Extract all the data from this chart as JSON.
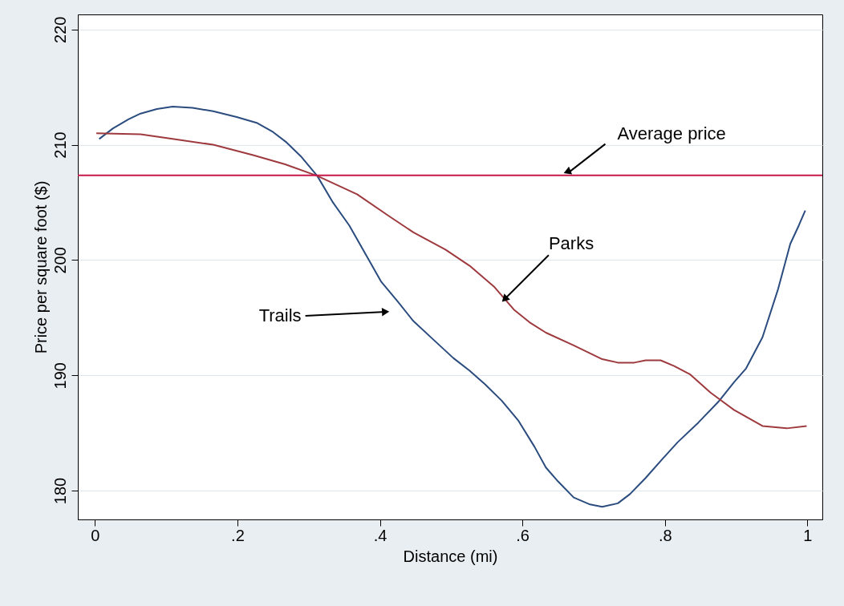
{
  "chart_data": {
    "type": "line",
    "xlabel": "Distance (mi)",
    "ylabel": "Price per square foot ($)",
    "xlim": [
      -0.024,
      1.021
    ],
    "ylim": [
      177.5,
      221.3
    ],
    "xticks": [
      0,
      {
        "value": 0.2,
        "label": ".2"
      },
      {
        "value": 0.4,
        "label": ".4"
      },
      {
        "value": 0.6,
        "label": ".6"
      },
      {
        "value": 0.8,
        "label": ".8"
      },
      1
    ],
    "yticks": [
      180,
      190,
      200,
      210,
      220
    ],
    "grid": "y",
    "legend": false,
    "marker": "none",
    "line_style": "solid",
    "series": [
      {
        "color": "#2b4c7e",
        "x": [
          0.006,
          0.025,
          0.047,
          0.064,
          0.087,
          0.109,
          0.137,
          0.166,
          0.199,
          0.227,
          0.25,
          0.269,
          0.289,
          0.312,
          0.334,
          0.357,
          0.38,
          0.402,
          0.425,
          0.447,
          0.475,
          0.503,
          0.526,
          0.548,
          0.571,
          0.594,
          0.617,
          0.633,
          0.65,
          0.672,
          0.695,
          0.712,
          0.734,
          0.751,
          0.773,
          0.796,
          0.818,
          0.847,
          0.875,
          0.897,
          0.914,
          0.937,
          0.959,
          0.976,
          0.988,
          0.997
        ],
        "values": [
          210.5,
          211.4,
          212.2,
          212.7,
          213.1,
          213.3,
          213.2,
          212.9,
          212.4,
          211.9,
          211.1,
          210.2,
          209.0,
          207.3,
          205.0,
          203.0,
          200.5,
          198.1,
          196.4,
          194.7,
          193.1,
          191.5,
          190.4,
          189.2,
          187.8,
          186.1,
          183.8,
          182.0,
          180.8,
          179.4,
          178.8,
          178.6,
          178.9,
          179.7,
          181.1,
          182.7,
          184.2,
          185.9,
          187.7,
          189.4,
          190.6,
          193.3,
          197.5,
          201.4,
          203.0,
          204.3
        ]
      },
      {
        "color": "#9e3a3e",
        "x": [
          0.002,
          0.064,
          0.109,
          0.166,
          0.222,
          0.267,
          0.312,
          0.368,
          0.413,
          0.447,
          0.492,
          0.526,
          0.56,
          0.588,
          0.61,
          0.633,
          0.672,
          0.712,
          0.734,
          0.757,
          0.773,
          0.794,
          0.813,
          0.835,
          0.864,
          0.897,
          0.937,
          0.971,
          0.999
        ],
        "values": [
          211.0,
          210.9,
          210.5,
          210.0,
          209.1,
          208.3,
          207.3,
          205.7,
          203.8,
          202.4,
          200.9,
          199.5,
          197.7,
          195.7,
          194.6,
          193.7,
          192.6,
          191.4,
          191.1,
          191.1,
          191.3,
          191.3,
          190.8,
          190.1,
          188.5,
          187.0,
          185.6,
          185.4,
          185.6
        ]
      }
    ],
    "ref_lines": [
      {
        "axis": "y",
        "value": 207.35,
        "label": "Average price",
        "color": "#c8174a"
      }
    ],
    "annotations": [
      {
        "text": "Trails",
        "x": 0.408,
        "y": 195.5
      },
      {
        "text": "Parks",
        "x": 0.575,
        "y": 196.6
      }
    ]
  }
}
